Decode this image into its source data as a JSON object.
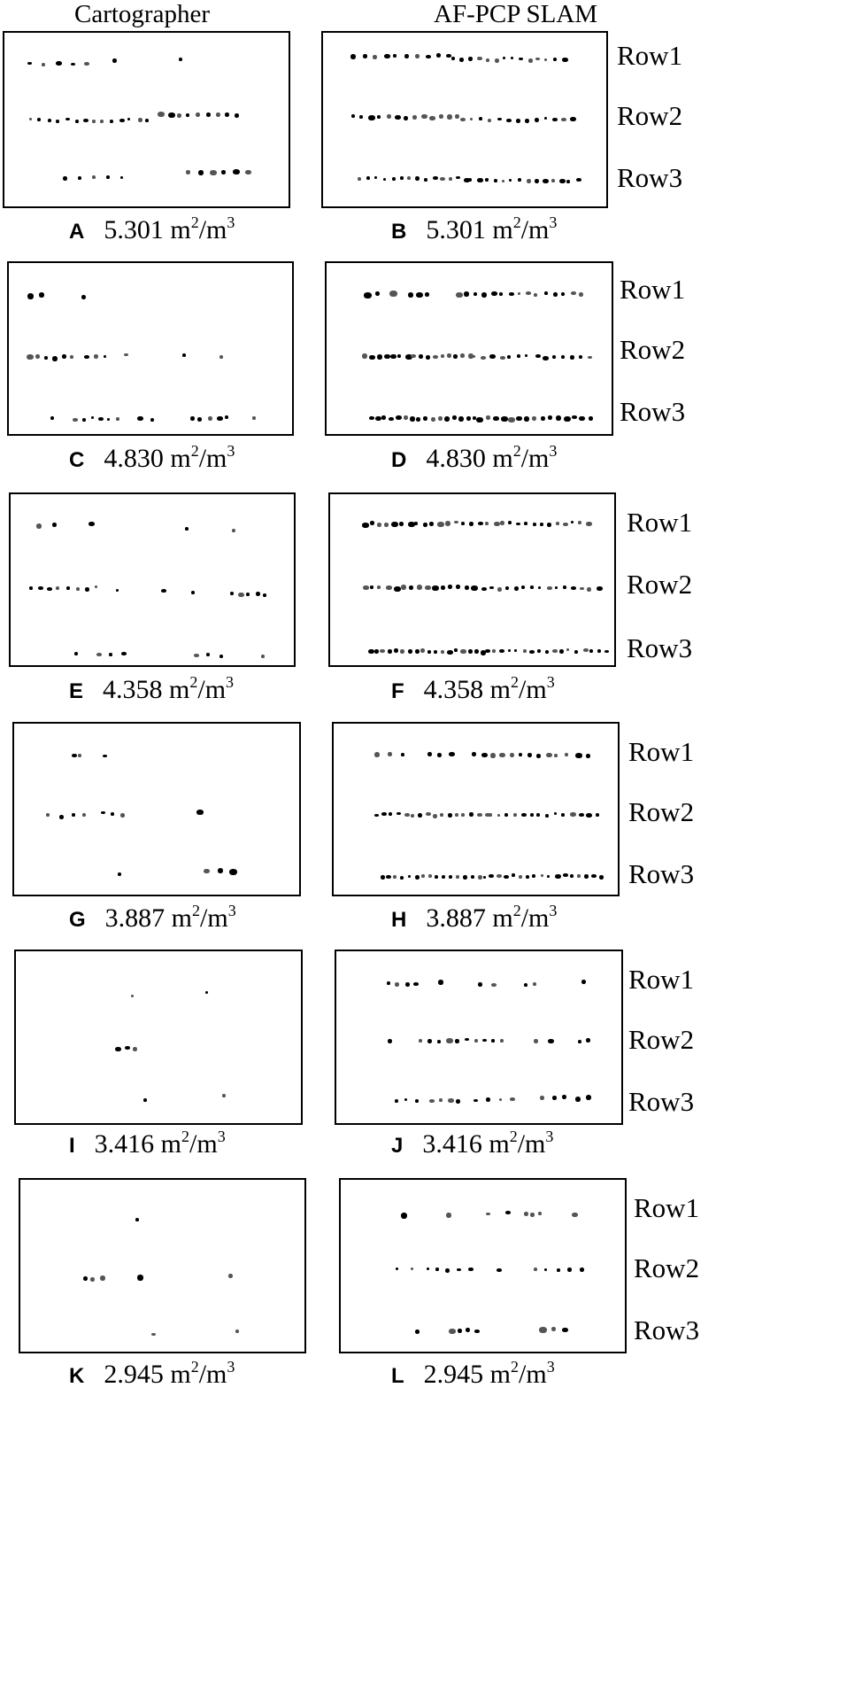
{
  "headers": {
    "left": "Cartographer",
    "right": "AF-PCP SLAM"
  },
  "row_labels": [
    "Row1",
    "Row2",
    "Row3"
  ],
  "area_unit": {
    "base": "m",
    "exp1": "2",
    "sep": "/m",
    "exp2": "3"
  },
  "panels": [
    {
      "letter": "A",
      "value": "5.301",
      "method": "Cartographer"
    },
    {
      "letter": "B",
      "value": "5.301",
      "method": "AF-PCP SLAM"
    },
    {
      "letter": "C",
      "value": "4.830",
      "method": "Cartographer"
    },
    {
      "letter": "D",
      "value": "4.830",
      "method": "AF-PCP SLAM"
    },
    {
      "letter": "E",
      "value": "4.358",
      "method": "Cartographer"
    },
    {
      "letter": "F",
      "value": "4.358",
      "method": "AF-PCP SLAM"
    },
    {
      "letter": "G",
      "value": "3.887",
      "method": "Cartographer"
    },
    {
      "letter": "H",
      "value": "3.887",
      "method": "AF-PCP SLAM"
    },
    {
      "letter": "I",
      "value": "3.416",
      "method": "Cartographer"
    },
    {
      "letter": "J",
      "value": "3.416",
      "method": "AF-PCP SLAM"
    },
    {
      "letter": "K",
      "value": "2.945",
      "method": "Cartographer"
    },
    {
      "letter": "L",
      "value": "2.945",
      "method": "AF-PCP SLAM"
    }
  ],
  "colors": {
    "points": "#000000",
    "frame": "#000000",
    "background": "#ffffff"
  }
}
